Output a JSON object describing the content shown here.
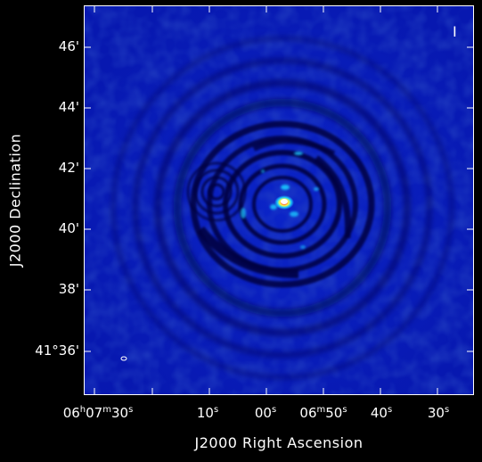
{
  "image": {
    "type": "radio-interferometry-map",
    "colormap": [
      "#000066",
      "#0a20d8",
      "#19c8ff",
      "#ffff40",
      "#ff2020",
      "#ffffff"
    ]
  },
  "axes": {
    "y_label": "J2000 Declination",
    "x_label": "J2000 Right Ascension",
    "y_ticks": [
      "46'",
      "44'",
      "42'",
      "40'",
      "38'",
      "41°36'"
    ],
    "x_ticks": {
      "t0": {
        "h": "06",
        "hu": "h",
        "m": "07",
        "mu": "m",
        "s": "30",
        "su": "s"
      },
      "t1": {
        "s": "10",
        "su": "s"
      },
      "t2": {
        "s": "00",
        "su": "s"
      },
      "t3": {
        "h": "06",
        "mu": "m",
        "m": "50",
        "su": "s",
        "s": ""
      },
      "t4": {
        "s": "40",
        "su": "s"
      },
      "t5": {
        "s": "30",
        "su": "s"
      }
    }
  },
  "wedge_marker": "I"
}
